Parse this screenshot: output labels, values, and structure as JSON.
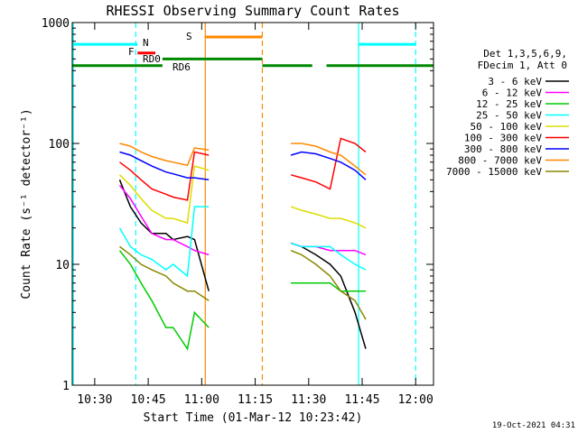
{
  "chart_data": {
    "type": "line",
    "title": "RHESSI Observing Summary Count Rates",
    "xlabel": "Start Time (01-Mar-12 10:23:42)",
    "ylabel": "Count Rate (s⁻¹ detector⁻¹)",
    "y_scale": "log",
    "ylim": [
      1,
      1000
    ],
    "xlim_minutes": [
      23.7,
      125
    ],
    "x_ticks": [
      {
        "minute": 30,
        "label": "10:30"
      },
      {
        "minute": 45,
        "label": "10:45"
      },
      {
        "minute": 60,
        "label": "11:00"
      },
      {
        "minute": 75,
        "label": "11:15"
      },
      {
        "minute": 90,
        "label": "11:30"
      },
      {
        "minute": 105,
        "label": "11:45"
      },
      {
        "minute": 120,
        "label": "12:00"
      }
    ],
    "y_ticks": [
      {
        "value": 1,
        "label": "1"
      },
      {
        "value": 10,
        "label": "10"
      },
      {
        "value": 100,
        "label": "100"
      },
      {
        "value": 1000,
        "label": "1000"
      }
    ],
    "legend_header": [
      "Det 1,3,5,6,9,",
      "FDecim 1, Att 0"
    ],
    "timestamp": "19-Oct-2021 04:31",
    "series": [
      {
        "name": "3 - 6 keV",
        "color": "#000000",
        "x": [
          37,
          40,
          43,
          46,
          50,
          52,
          56,
          58,
          62,
          85,
          88,
          92,
          96,
          99,
          103,
          106
        ],
        "y": [
          50,
          30,
          22,
          18,
          18,
          16,
          17,
          16,
          6,
          15,
          14,
          12,
          10,
          8,
          4,
          2
        ]
      },
      {
        "name": "6 - 12 keV",
        "color": "#ff00ff",
        "x": [
          37,
          40,
          43,
          46,
          50,
          52,
          56,
          58,
          62,
          85,
          88,
          92,
          96,
          99,
          103,
          106
        ],
        "y": [
          45,
          35,
          25,
          18,
          16,
          16,
          14,
          13,
          12,
          15,
          14,
          14,
          13,
          13,
          13,
          12
        ]
      },
      {
        "name": "12 - 25 keV",
        "color": "#00cc00",
        "x": [
          37,
          40,
          43,
          46,
          50,
          52,
          56,
          58,
          62,
          85,
          88,
          92,
          96,
          99,
          103,
          106
        ],
        "y": [
          13,
          10,
          7,
          5,
          3,
          3,
          2,
          4,
          3,
          7,
          7,
          7,
          7,
          6,
          6,
          6
        ]
      },
      {
        "name": "25 - 50 keV",
        "color": "#00ffff",
        "x": [
          37,
          40,
          43,
          46,
          50,
          52,
          56,
          58,
          62,
          85,
          88,
          92,
          96,
          99,
          103,
          106
        ],
        "y": [
          20,
          14,
          12,
          11,
          9,
          10,
          8,
          30,
          30,
          15,
          14,
          14,
          14,
          12,
          10,
          9
        ]
      },
      {
        "name": "50 - 100 keV",
        "color": "#dddd00",
        "x": [
          37,
          40,
          43,
          46,
          50,
          52,
          56,
          58,
          62,
          85,
          88,
          92,
          96,
          99,
          103,
          106
        ],
        "y": [
          55,
          45,
          35,
          28,
          24,
          24,
          22,
          65,
          60,
          30,
          28,
          26,
          24,
          24,
          22,
          20
        ]
      },
      {
        "name": "100 - 300 keV",
        "color": "#ff0000",
        "x": [
          37,
          40,
          43,
          46,
          50,
          52,
          56,
          58,
          62,
          85,
          88,
          92,
          96,
          99,
          103,
          106
        ],
        "y": [
          70,
          60,
          50,
          42,
          38,
          36,
          34,
          85,
          80,
          55,
          52,
          48,
          42,
          110,
          100,
          85
        ]
      },
      {
        "name": "300 - 800 keV",
        "color": "#0000ff",
        "x": [
          37,
          40,
          43,
          46,
          50,
          52,
          56,
          58,
          62,
          85,
          88,
          92,
          96,
          99,
          103,
          106
        ],
        "y": [
          85,
          80,
          72,
          65,
          58,
          56,
          52,
          52,
          50,
          80,
          85,
          82,
          75,
          70,
          60,
          50
        ]
      },
      {
        "name": "800 - 7000 keV",
        "color": "#ff8800",
        "x": [
          37,
          40,
          43,
          46,
          50,
          52,
          56,
          58,
          62,
          85,
          88,
          92,
          96,
          99,
          103,
          106
        ],
        "y": [
          100,
          95,
          85,
          78,
          72,
          70,
          66,
          92,
          88,
          100,
          100,
          95,
          85,
          80,
          65,
          55
        ]
      },
      {
        "name": "7000 - 15000 keV",
        "color": "#888800",
        "x": [
          37,
          40,
          43,
          46,
          50,
          52,
          56,
          58,
          62,
          85,
          88,
          92,
          96,
          99,
          103,
          106
        ],
        "y": [
          14,
          12,
          10,
          9,
          8,
          7,
          6,
          6,
          5,
          13,
          12,
          10,
          8,
          6,
          5,
          3.5
        ]
      }
    ],
    "flag_bars": [
      {
        "label": "N",
        "color": "#00ffff",
        "segments": [
          [
            23.7,
            42
          ],
          [
            104,
            120
          ]
        ],
        "level": 660
      },
      {
        "label": "S",
        "color": "#ff8800",
        "segments": [
          [
            61,
            77
          ]
        ],
        "level": 760
      },
      {
        "label": "F",
        "color": "#ff0000",
        "segments": [
          [
            42,
            47
          ]
        ],
        "level": 560
      },
      {
        "label": "RD0",
        "color": "#ff0000",
        "segments": [],
        "level": 520
      },
      {
        "label": "RD6",
        "color": "#008800",
        "segments": [
          [
            23.7,
            49
          ],
          [
            77,
            91
          ],
          [
            95,
            125
          ]
        ],
        "level": 440
      },
      {
        "label": "",
        "color": "#008800",
        "segments": [
          [
            49,
            77
          ]
        ],
        "level": 500
      }
    ],
    "vlines": [
      {
        "minute": 24,
        "color": "#00ffff",
        "style": "solid"
      },
      {
        "minute": 41.5,
        "color": "#00ffff",
        "style": "dashed"
      },
      {
        "minute": 61,
        "color": "#ff8800",
        "style": "solid"
      },
      {
        "minute": 77,
        "color": "#ff8800",
        "style": "dashed"
      },
      {
        "minute": 104,
        "color": "#00ffff",
        "style": "solid"
      },
      {
        "minute": 120,
        "color": "#00ffff",
        "style": "dashed"
      }
    ]
  }
}
